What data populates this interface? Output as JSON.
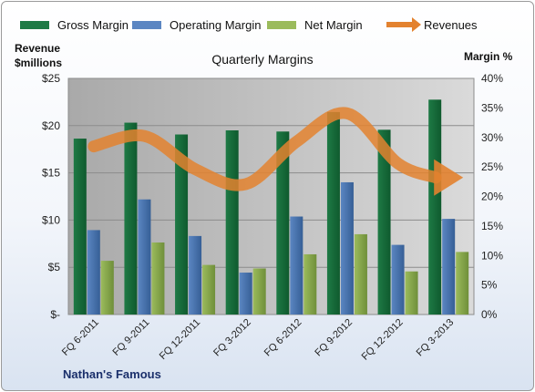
{
  "chart_data": {
    "type": "bar",
    "title": "Quarterly Margins",
    "left_axis": {
      "label_line1": "Revenue",
      "label_line2": "$millions",
      "ticks": [
        "$-",
        "$5",
        "$10",
        "$15",
        "$20",
        "$25"
      ],
      "range": [
        0,
        25
      ]
    },
    "right_axis": {
      "label": "Margin %",
      "ticks": [
        "0%",
        "5%",
        "10%",
        "15%",
        "20%",
        "25%",
        "30%",
        "35%",
        "40%"
      ],
      "range": [
        0,
        40
      ]
    },
    "categories": [
      "FQ 6-2011",
      "FQ 9-2011",
      "FQ 12-2011",
      "FQ 3-2012",
      "FQ 6-2012",
      "FQ 9-2012",
      "FQ 12-2012",
      "FQ 3-2013"
    ],
    "series": [
      {
        "name": "Gross Margin",
        "axis": "right",
        "color": "#1e7a45",
        "values": [
          29.8,
          32.5,
          30.5,
          31.2,
          31.0,
          34.3,
          31.3,
          36.4
        ]
      },
      {
        "name": "Operating Margin",
        "axis": "right",
        "color": "#4f79b5",
        "values": [
          14.3,
          19.5,
          13.3,
          7.1,
          16.6,
          22.4,
          11.8,
          16.2
        ]
      },
      {
        "name": "Net Margin",
        "axis": "right",
        "color": "#8fae52",
        "values": [
          9.1,
          12.2,
          8.4,
          7.8,
          10.2,
          13.6,
          7.3,
          10.6
        ]
      },
      {
        "name": "Revenues",
        "axis": "left",
        "type": "arrow-line",
        "color": "#e3822f",
        "values": [
          17.8,
          18.9,
          15.4,
          13.8,
          18.3,
          21.3,
          16.0,
          14.5
        ]
      }
    ],
    "grid": true,
    "legend_position": "top"
  },
  "footer": {
    "company": "Nathan's Famous"
  }
}
